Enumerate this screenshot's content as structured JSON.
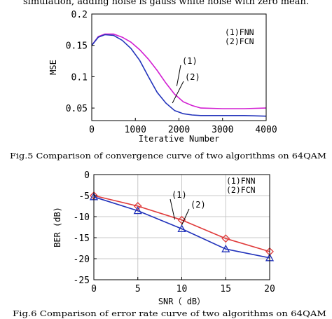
{
  "top_text": "simulation, adding noise is gauss white noise with zero mean.",
  "chart_data": [
    {
      "type": "line",
      "title": "",
      "caption": "Fig.5 Comparison of convergence curve of two algorithms on 64QAM",
      "xlabel": "Iterative Number",
      "ylabel": "MSE",
      "xlim": [
        0,
        4000
      ],
      "ylim": [
        0.03,
        0.2
      ],
      "xticks": [
        0,
        1000,
        2000,
        3000,
        4000
      ],
      "yticks": [
        0.05,
        0.1,
        0.15,
        0.2
      ],
      "xtick_labels": [
        "0",
        "1000",
        "2000",
        "3000",
        "4000"
      ],
      "ytick_labels": [
        "0.05",
        "0.1",
        "0.15",
        "0.2"
      ],
      "grid": false,
      "legend": [
        "(1)FNN",
        "(2)FCN"
      ],
      "legend_position": "top-right",
      "annotations": [
        "(1)",
        "(2)"
      ],
      "series": [
        {
          "name": "(1)FNN",
          "color": "#d21ed2",
          "x": [
            0,
            150,
            300,
            500,
            700,
            900,
            1100,
            1300,
            1500,
            1700,
            1900,
            2100,
            2300,
            2500,
            3000,
            3500,
            4000
          ],
          "y": [
            0.15,
            0.164,
            0.168,
            0.168,
            0.163,
            0.155,
            0.143,
            0.128,
            0.11,
            0.09,
            0.072,
            0.06,
            0.054,
            0.05,
            0.049,
            0.049,
            0.05
          ]
        },
        {
          "name": "(2)FCN",
          "color": "#2233bb",
          "x": [
            0,
            150,
            300,
            500,
            700,
            900,
            1100,
            1300,
            1500,
            1700,
            1900,
            2100,
            2300,
            2500,
            3000,
            3500,
            4000
          ],
          "y": [
            0.15,
            0.163,
            0.167,
            0.166,
            0.158,
            0.145,
            0.126,
            0.1,
            0.075,
            0.058,
            0.046,
            0.041,
            0.039,
            0.038,
            0.038,
            0.038,
            0.037
          ]
        }
      ]
    },
    {
      "type": "line",
      "title": "",
      "caption": "Fig.6 Comparison of error rate curve of two algorithms on 64QAM",
      "xlabel": "SNR（ dB）",
      "ylabel": "BER (dB)",
      "xlim": [
        0,
        20
      ],
      "ylim": [
        -25,
        0
      ],
      "xticks": [
        0,
        5,
        10,
        15,
        20
      ],
      "yticks": [
        0,
        -5,
        -10,
        -15,
        -20,
        -25
      ],
      "xtick_labels": [
        "0",
        "5",
        "10",
        "15",
        "20"
      ],
      "ytick_labels": [
        "0",
        "-5",
        "-10",
        "-15",
        "-20",
        "-25"
      ],
      "grid": true,
      "legend": [
        "(1)FNN",
        "(2)FCN"
      ],
      "legend_position": "top-right",
      "annotations": [
        "(1)",
        "(2)"
      ],
      "series": [
        {
          "name": "(1)FNN",
          "color": "#e03a3a",
          "marker": "diamond",
          "x": [
            0,
            5,
            10,
            15,
            20
          ],
          "y": [
            -5,
            -7.5,
            -10.8,
            -15.2,
            -18.3
          ]
        },
        {
          "name": "(2)FCN",
          "color": "#2233bb",
          "marker": "triangle",
          "x": [
            0,
            5,
            10,
            15,
            20
          ],
          "y": [
            -5.3,
            -8.6,
            -12.9,
            -17.7,
            -19.8
          ]
        }
      ]
    }
  ]
}
